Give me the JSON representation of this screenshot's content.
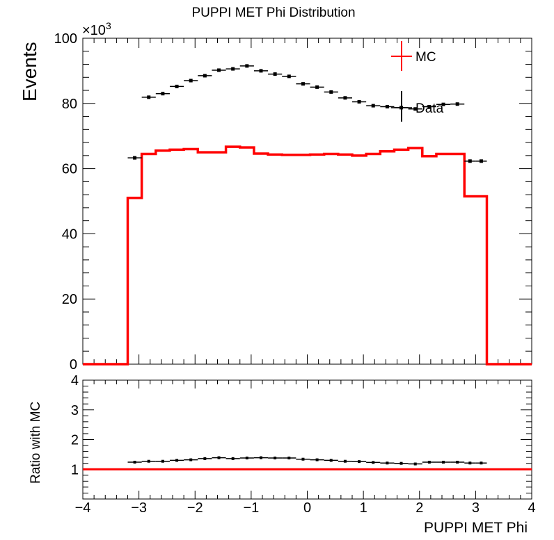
{
  "chart_data": [
    {
      "type": "line",
      "title": "PUPPI MET Phi Distribution",
      "ylabel": "Events",
      "y_multiplier_label": "×10",
      "y_multiplier_exp": "3",
      "xlim": [
        -4,
        4
      ],
      "ylim": [
        0,
        100
      ],
      "yticks": [
        "0",
        "20",
        "40",
        "60",
        "80",
        "100"
      ],
      "legend": {
        "placement": "top-right",
        "entries": [
          "MC",
          "Data"
        ]
      },
      "colors": {
        "mc": "#ff0000",
        "data": "#000000"
      },
      "bin_edges": [
        -3.2,
        -2.95,
        -2.7,
        -2.45,
        -2.2,
        -1.95,
        -1.7,
        -1.45,
        -1.2,
        -0.95,
        -0.7,
        -0.45,
        -0.2,
        0.05,
        0.3,
        0.55,
        0.8,
        1.05,
        1.3,
        1.55,
        1.8,
        2.05,
        2.3,
        2.55,
        2.8,
        3.0,
        3.2
      ],
      "series": [
        {
          "name": "MC",
          "values": [
            51.0,
            64.5,
            65.5,
            65.8,
            66.0,
            65.0,
            65.0,
            66.7,
            66.5,
            64.6,
            64.3,
            64.2,
            64.2,
            64.3,
            64.5,
            64.3,
            64.0,
            64.5,
            65.3,
            65.8,
            66.3,
            63.8,
            64.5,
            64.5,
            51.5,
            51.5
          ]
        },
        {
          "name": "Data",
          "values": [
            63.3,
            81.9,
            83.0,
            85.2,
            87.0,
            88.5,
            90.2,
            90.6,
            91.5,
            90.0,
            89.0,
            88.3,
            86.0,
            85.0,
            83.5,
            81.7,
            80.5,
            79.3,
            79.0,
            78.7,
            78.3,
            79.0,
            79.7,
            79.8,
            62.3,
            62.3
          ]
        }
      ]
    },
    {
      "type": "line",
      "ylabel": "Ratio with MC",
      "xlabel": "PUPPI MET Phi",
      "xlim": [
        -4,
        4
      ],
      "ylim": [
        0,
        4
      ],
      "xticks": [
        "−4",
        "−3",
        "−2",
        "−1",
        "0",
        "1",
        "2",
        "3",
        "4"
      ],
      "yticks": [
        "1",
        "2",
        "3",
        "4"
      ],
      "reference_line": 1,
      "series": [
        {
          "name": "Data",
          "values": [
            1.24,
            1.27,
            1.27,
            1.3,
            1.32,
            1.36,
            1.39,
            1.36,
            1.38,
            1.39,
            1.38,
            1.38,
            1.34,
            1.32,
            1.3,
            1.27,
            1.26,
            1.23,
            1.21,
            1.2,
            1.18,
            1.24,
            1.24,
            1.24,
            1.21,
            1.21
          ]
        }
      ]
    }
  ]
}
